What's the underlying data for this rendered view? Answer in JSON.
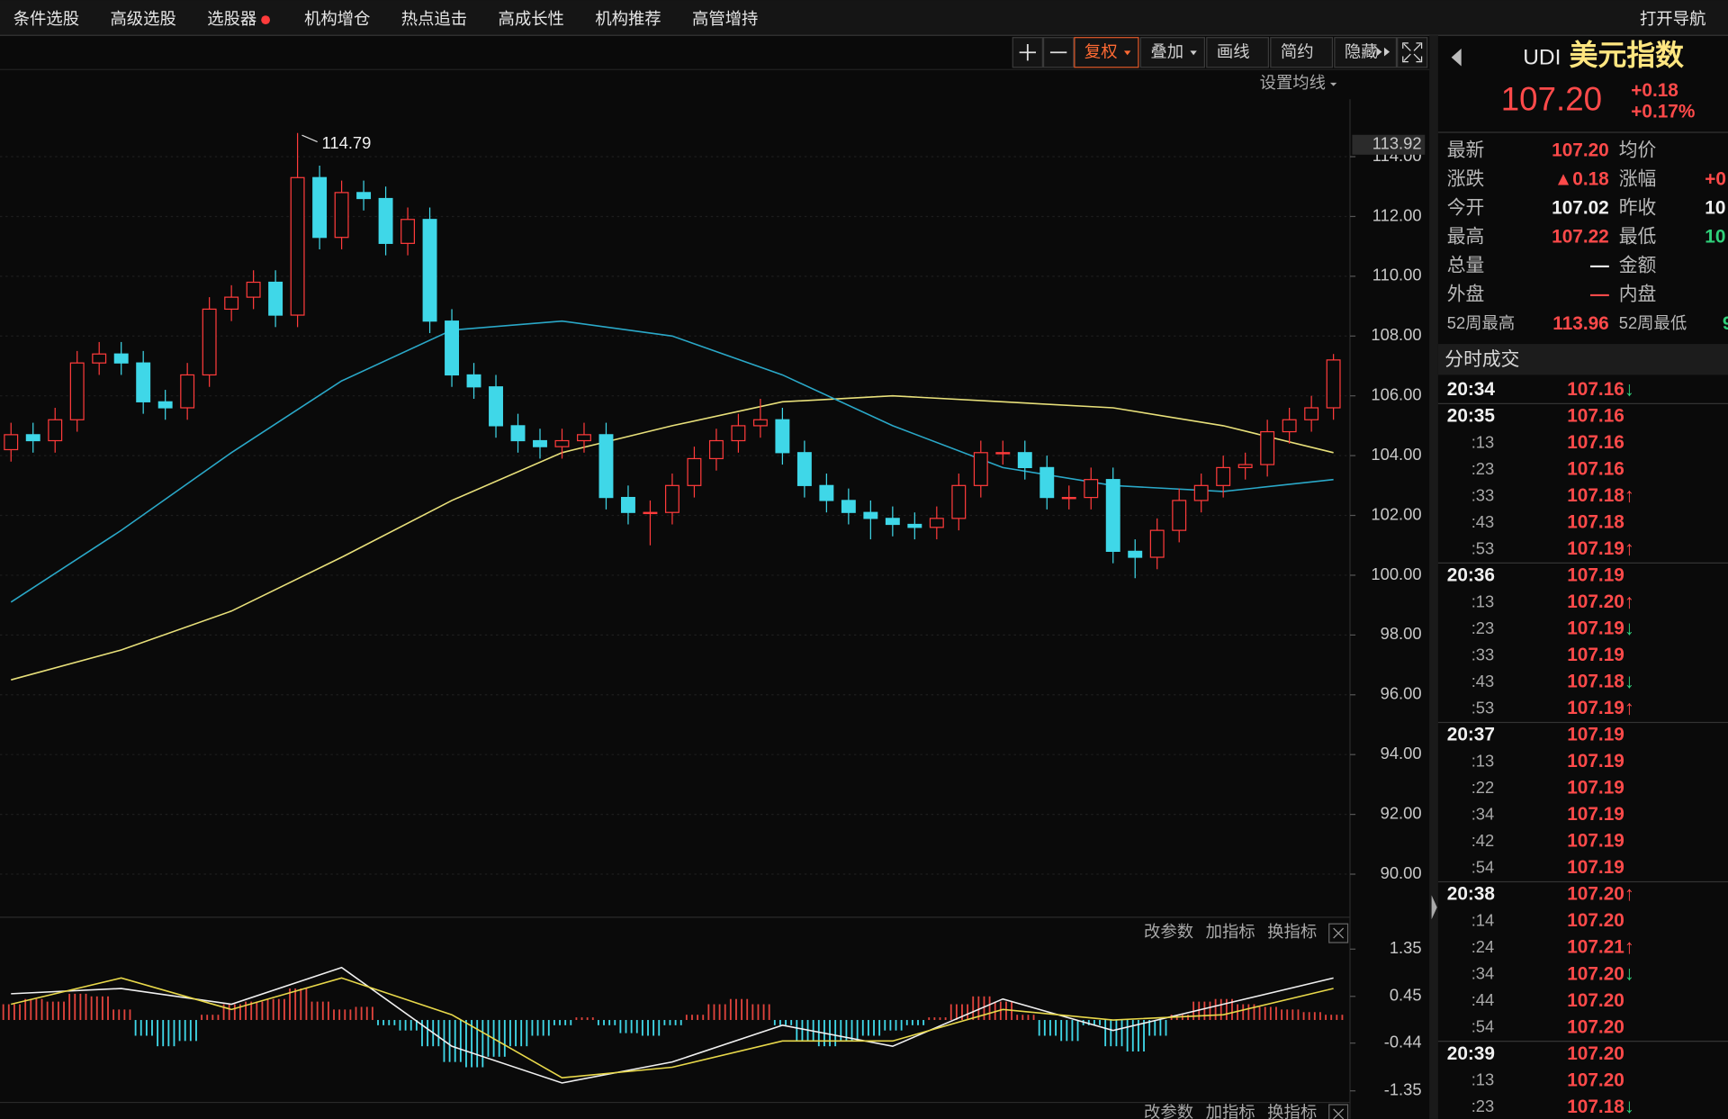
{
  "menu": {
    "items": [
      "条件选股",
      "高级选股",
      "选股器",
      "机构增仓",
      "热点追击",
      "高成长性",
      "机构推荐",
      "高管增持"
    ],
    "nav": "打开导航"
  },
  "toolbar": {
    "buttons": [
      "复权",
      "叠加",
      "画线",
      "简约",
      "隐藏"
    ],
    "ma_setting": "设置均线"
  },
  "chart_data": [
    {
      "type": "candlestick",
      "open": [
        104.2,
        104.7,
        104.5,
        105.2,
        107.1,
        107.4,
        107.1,
        105.8,
        105.6,
        106.7,
        108.9,
        109.3,
        109.8,
        108.7,
        113.3,
        111.3,
        112.8,
        112.6,
        111.1,
        111.9,
        108.5,
        106.7,
        106.3,
        105.0,
        104.5,
        104.3,
        104.5,
        104.7,
        102.6,
        102.1,
        102.1,
        103.0,
        103.9,
        104.5,
        105.0,
        105.2,
        104.1,
        103.0,
        102.5,
        102.1,
        101.9,
        101.7,
        101.6,
        101.9,
        103.0,
        104.1,
        104.1,
        103.6,
        102.6,
        102.6,
        103.2,
        100.8,
        100.6,
        101.5,
        102.5,
        103.0,
        103.6,
        103.7,
        104.8,
        105.2,
        105.6
      ],
      "high": [
        105.1,
        105.1,
        105.6,
        107.5,
        107.8,
        107.8,
        107.5,
        106.2,
        107.1,
        109.3,
        109.7,
        110.2,
        110.2,
        114.79,
        113.7,
        113.2,
        113.2,
        113.0,
        112.3,
        112.3,
        108.9,
        107.1,
        106.7,
        105.4,
        104.9,
        104.9,
        105.1,
        105.1,
        103.0,
        102.5,
        103.4,
        104.3,
        104.9,
        105.4,
        105.9,
        105.6,
        104.5,
        103.4,
        102.9,
        102.5,
        102.3,
        102.1,
        102.3,
        103.4,
        104.5,
        104.5,
        104.5,
        104.0,
        103.0,
        103.6,
        103.6,
        101.2,
        101.9,
        102.9,
        103.4,
        104.0,
        104.1,
        105.2,
        105.6,
        106.0,
        107.4
      ],
      "low": [
        103.8,
        104.1,
        104.1,
        104.8,
        106.7,
        106.7,
        105.4,
        105.2,
        105.2,
        106.3,
        108.5,
        108.9,
        108.3,
        108.3,
        110.9,
        110.9,
        112.2,
        110.7,
        110.7,
        108.1,
        106.3,
        105.9,
        104.6,
        104.1,
        103.9,
        103.9,
        104.1,
        102.2,
        101.7,
        101.0,
        101.7,
        102.6,
        103.5,
        104.1,
        104.6,
        103.7,
        102.6,
        102.1,
        101.7,
        101.2,
        101.3,
        101.2,
        101.2,
        101.5,
        102.6,
        103.7,
        103.2,
        102.2,
        102.2,
        102.2,
        100.4,
        99.9,
        100.2,
        101.1,
        102.1,
        102.6,
        103.2,
        103.3,
        104.4,
        104.8,
        105.2
      ],
      "close": [
        104.7,
        104.5,
        105.2,
        107.1,
        107.4,
        107.1,
        105.8,
        105.6,
        106.7,
        108.9,
        109.3,
        109.8,
        108.7,
        113.3,
        111.3,
        112.8,
        112.6,
        111.1,
        111.9,
        108.5,
        106.7,
        106.3,
        105.0,
        104.5,
        104.3,
        104.5,
        104.7,
        102.6,
        102.1,
        102.1,
        103.0,
        103.9,
        104.5,
        105.0,
        105.2,
        104.1,
        103.0,
        102.5,
        102.1,
        101.9,
        101.7,
        101.6,
        101.9,
        103.0,
        104.1,
        104.1,
        103.6,
        102.6,
        102.6,
        103.2,
        100.8,
        100.6,
        101.5,
        102.5,
        103.0,
        103.6,
        103.7,
        104.8,
        105.2,
        105.6,
        107.2
      ],
      "up_color": "#ff3b3b",
      "down_color": "#3fd7e8",
      "lines": [
        {
          "color": "#e8e07a",
          "x": [
            0,
            5,
            10,
            15,
            20,
            25,
            30,
            35,
            40,
            45,
            50,
            55,
            60
          ],
          "values": [
            96.5,
            97.5,
            98.8,
            100.6,
            102.5,
            104.1,
            105.0,
            105.8,
            106.0,
            105.8,
            105.6,
            105.0,
            104.1
          ]
        },
        {
          "color": "#2aa8c8",
          "x": [
            0,
            5,
            10,
            15,
            20,
            25,
            30,
            35,
            40,
            45,
            50,
            55,
            60
          ],
          "values": [
            99.1,
            101.5,
            104.1,
            106.5,
            108.2,
            108.5,
            108.0,
            106.7,
            105.0,
            103.6,
            103.0,
            102.8,
            103.2
          ]
        }
      ],
      "ylim": [
        88.56,
        115.92
      ],
      "yticks": [
        {
          "value": 90,
          "label": "90.00"
        },
        {
          "value": 92,
          "label": "92.00"
        },
        {
          "value": 94,
          "label": "94.00"
        },
        {
          "value": 96,
          "label": "96.00"
        },
        {
          "value": 98,
          "label": "98.00"
        },
        {
          "value": 100,
          "label": "100.00"
        },
        {
          "value": 102,
          "label": "102.00"
        },
        {
          "value": 104,
          "label": "104.00"
        },
        {
          "value": 106,
          "label": "106.00"
        },
        {
          "value": 108,
          "label": "108.00"
        },
        {
          "value": 110,
          "label": "110.00"
        },
        {
          "value": 112,
          "label": "112.00"
        },
        {
          "value": 114,
          "label": "114.00"
        }
      ],
      "grid": true,
      "annotation": {
        "value": 114.79,
        "label": "114.79"
      },
      "price_tag": {
        "value": 113.92,
        "label": "113.92"
      }
    },
    {
      "type": "macd",
      "values": [
        0.3,
        0.4,
        0.35,
        0.5,
        0.45,
        0.2,
        -0.3,
        -0.5,
        -0.4,
        0.1,
        0.3,
        0.35,
        0.4,
        0.6,
        0.35,
        0.2,
        0.25,
        -0.1,
        -0.2,
        -0.5,
        -0.8,
        -0.9,
        -0.7,
        -0.5,
        -0.3,
        -0.1,
        0.05,
        -0.1,
        -0.25,
        -0.3,
        -0.1,
        0.1,
        0.3,
        0.4,
        0.3,
        -0.1,
        -0.4,
        -0.5,
        -0.4,
        -0.3,
        -0.2,
        -0.1,
        0.05,
        0.3,
        0.45,
        0.35,
        0.1,
        -0.3,
        -0.4,
        -0.1,
        -0.5,
        -0.6,
        -0.3,
        0.1,
        0.35,
        0.4,
        0.3,
        0.25,
        0.2,
        0.15,
        0.1
      ],
      "up_color": "#e0433c",
      "down_color": "#3fd7e8",
      "lines": [
        {
          "color": "#f0f0f0",
          "x": [
            0,
            5,
            10,
            15,
            20,
            25,
            30,
            35,
            40,
            45,
            50,
            55,
            60
          ],
          "values": [
            0.5,
            0.6,
            0.3,
            1.0,
            -0.5,
            -1.2,
            -0.8,
            -0.1,
            -0.5,
            0.4,
            -0.2,
            0.3,
            0.8
          ]
        },
        {
          "color": "#e8d84a",
          "x": [
            0,
            5,
            10,
            15,
            20,
            25,
            30,
            35,
            40,
            45,
            50,
            55,
            60
          ],
          "values": [
            0.3,
            0.8,
            0.2,
            0.8,
            0.1,
            -1.1,
            -0.9,
            -0.4,
            -0.4,
            0.2,
            0.0,
            0.1,
            0.6
          ]
        }
      ],
      "ylim": [
        -1.57,
        1.79
      ],
      "yticks": [
        1.35,
        0.45,
        -0.44,
        -1.35
      ],
      "buttons": [
        "改参数",
        "加指标",
        "换指标"
      ]
    }
  ],
  "quote": {
    "symbol": "UDI",
    "name": "美元指数",
    "price": "107.20",
    "change": "+0.18",
    "change_pct": "+0.17%",
    "rows": [
      {
        "label": "最新",
        "value": "107.20",
        "label2": "均价"
      },
      {
        "label": "涨跌",
        "value": "▲0.18",
        "label2": "涨幅",
        "value2": "+0"
      },
      {
        "label": "今开",
        "value": "107.02",
        "label2": "昨收",
        "value2": "10"
      },
      {
        "label": "最高",
        "value": "107.22",
        "label2": "最低",
        "value2": "10"
      },
      {
        "label": "总量",
        "value": "—",
        "label2": "金额"
      },
      {
        "label": "外盘",
        "value": "—",
        "label2": "内盘"
      },
      {
        "label": "52周最高",
        "value": "113.96",
        "label2": "52周最低",
        "value2": "9"
      }
    ]
  },
  "trades": {
    "title": "分时成交",
    "rows": [
      {
        "time": "20:34",
        "price": "107.16",
        "dir": "↓"
      },
      {
        "time": "20:35",
        "price": "107.16"
      },
      {
        "time": ":13",
        "price": "107.16"
      },
      {
        "time": ":23",
        "price": "107.16"
      },
      {
        "time": ":33",
        "price": "107.18",
        "dir": "↑"
      },
      {
        "time": ":43",
        "price": "107.18"
      },
      {
        "time": ":53",
        "price": "107.19",
        "dir": "↑"
      },
      {
        "time": "20:36",
        "price": "107.19"
      },
      {
        "time": ":13",
        "price": "107.20",
        "dir": "↑"
      },
      {
        "time": ":23",
        "price": "107.19",
        "dir": "↓"
      },
      {
        "time": ":33",
        "price": "107.19"
      },
      {
        "time": ":43",
        "price": "107.18",
        "dir": "↓"
      },
      {
        "time": ":53",
        "price": "107.19",
        "dir": "↑"
      },
      {
        "time": "20:37",
        "price": "107.19"
      },
      {
        "time": ":13",
        "price": "107.19"
      },
      {
        "time": ":22",
        "price": "107.19"
      },
      {
        "time": ":34",
        "price": "107.19"
      },
      {
        "time": ":42",
        "price": "107.19"
      },
      {
        "time": ":54",
        "price": "107.19"
      },
      {
        "time": "20:38",
        "price": "107.20",
        "dir": "↑"
      },
      {
        "time": ":14",
        "price": "107.20"
      },
      {
        "time": ":24",
        "price": "107.21",
        "dir": "↑"
      },
      {
        "time": ":34",
        "price": "107.20",
        "dir": "↓"
      },
      {
        "time": ":44",
        "price": "107.20"
      },
      {
        "time": ":54",
        "price": "107.20"
      },
      {
        "time": "20:39",
        "price": "107.20"
      },
      {
        "time": ":13",
        "price": "107.20"
      },
      {
        "time": ":23",
        "price": "107.18",
        "dir": "↓"
      }
    ]
  }
}
